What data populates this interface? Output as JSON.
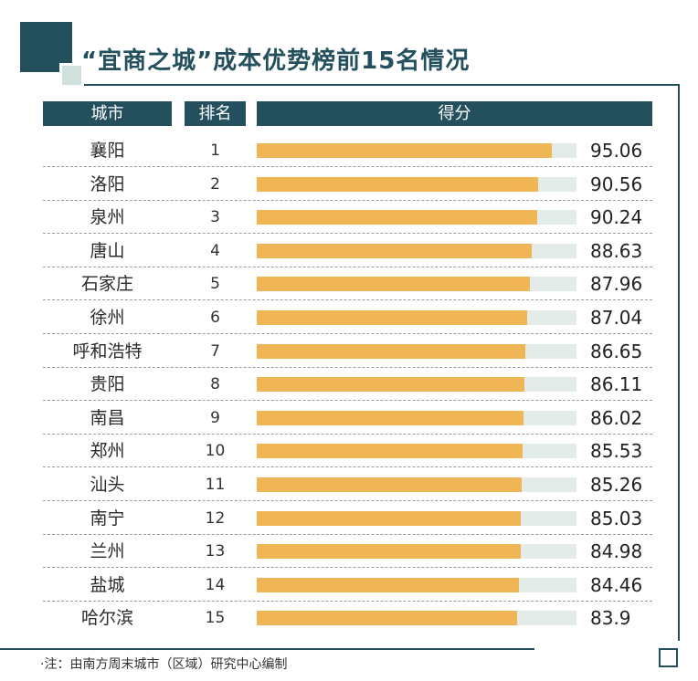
{
  "title": "“宜商之城”成本优势榜前15名情况",
  "headers": {
    "city": "城市",
    "rank": "排名",
    "score": "得分"
  },
  "colors": {
    "header_bg": "#24505e",
    "bar": "#f0b554",
    "track": "#e4ecea"
  },
  "note": "·注：由南方周末城市（区域）研究中心编制",
  "chart_data": {
    "type": "bar",
    "orientation": "horizontal",
    "categories": [
      "襄阳",
      "洛阳",
      "泉州",
      "唐山",
      "石家庄",
      "徐州",
      "呼和浩特",
      "贵阳",
      "南昌",
      "郑州",
      "汕头",
      "南宁",
      "兰州",
      "盐城",
      "哈尔滨"
    ],
    "ranks": [
      "1",
      "2",
      "3",
      "4",
      "5",
      "6",
      "7",
      "8",
      "9",
      "10",
      "11",
      "12",
      "13",
      "14",
      "15"
    ],
    "values": [
      95.06,
      90.56,
      90.24,
      88.63,
      87.96,
      87.04,
      86.65,
      86.11,
      86.02,
      85.53,
      85.26,
      85.03,
      84.98,
      84.46,
      83.9
    ],
    "labels": [
      "95.06",
      "90.56",
      "90.24",
      "88.63",
      "87.96",
      "87.04",
      "86.65",
      "86.11",
      "86.02",
      "85.53",
      "85.26",
      "85.03",
      "84.98",
      "84.46",
      "83.9"
    ],
    "xlim": [
      0,
      103
    ],
    "grid": false,
    "title": "“宜商之城”成本优势榜前15名情况"
  }
}
